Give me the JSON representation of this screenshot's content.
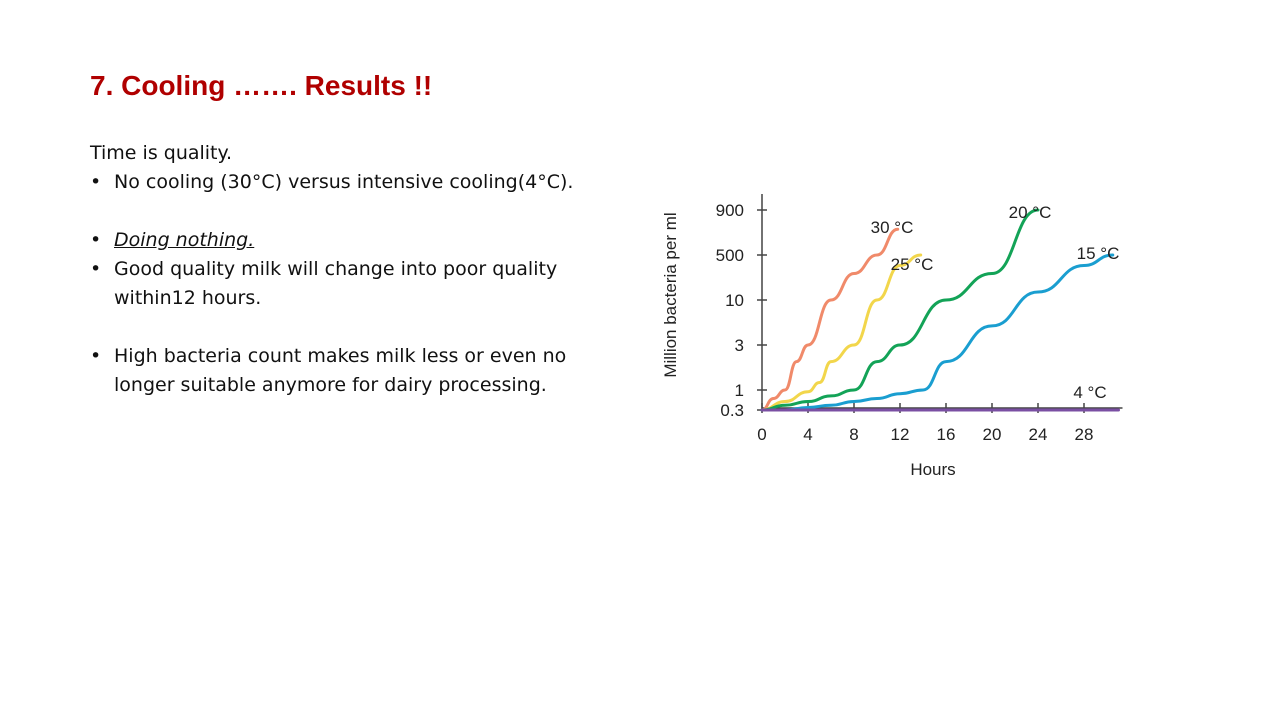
{
  "slide": {
    "title": "7. Cooling ……. Results !!",
    "intro": "Time is quality.",
    "bullet_1": "No cooling (30°C)  versus intensive cooling(4°C).",
    "bullet_2": "Doing nothing.",
    "bullet_3": "Good quality milk will change into poor quality within12 hours.",
    "bullet_4": "High bacteria count makes milk less or even no longer suitable anymore for dairy processing."
  },
  "chart_data": {
    "type": "line",
    "title": "",
    "xlabel": "Hours",
    "ylabel": "Million bacteria per ml",
    "xlim": [
      0,
      31
    ],
    "x_ticks": [
      0,
      4,
      8,
      12,
      16,
      20,
      24,
      28
    ],
    "y_ticks": [
      "0.3",
      "1",
      "3",
      "10",
      "500",
      "900"
    ],
    "grid": false,
    "legend": "none (series labelled at line ends)",
    "series": [
      {
        "name": "30 °C",
        "color": "#f08a6a",
        "x": [
          0,
          1,
          2,
          3,
          4,
          6,
          8,
          10,
          11.8
        ],
        "y": [
          "0.3",
          "0.6",
          "1",
          "2",
          "3",
          "10",
          "100",
          "500",
          "700"
        ]
      },
      {
        "name": "25 °C",
        "color": "#f2d64b",
        "x": [
          0,
          2,
          4,
          5,
          6,
          8,
          10,
          12,
          13.8
        ],
        "y": [
          "0.3",
          "0.5",
          "0.9",
          "1.2",
          "2",
          "3",
          "10",
          "200",
          "500"
        ]
      },
      {
        "name": "20 °C",
        "color": "#13a357",
        "x": [
          0,
          2,
          4,
          6,
          8,
          10,
          12,
          16,
          20,
          24
        ],
        "y": [
          "0.3",
          "0.4",
          "0.5",
          "0.7",
          "1",
          "2",
          "3",
          "10",
          "100",
          "900"
        ]
      },
      {
        "name": "15 °C",
        "color": "#1a9ed0",
        "x": [
          0,
          2,
          4,
          6,
          8,
          10,
          12,
          14,
          16,
          20,
          24,
          28,
          30.5
        ],
        "y": [
          "0.3",
          "0.3",
          "0.35",
          "0.4",
          "0.5",
          "0.6",
          "0.8",
          "1",
          "2",
          "5",
          "20",
          "200",
          "500"
        ]
      },
      {
        "name": "4 °C",
        "color": "#7a4fa3",
        "x": [
          0,
          8,
          16,
          24,
          31
        ],
        "y": [
          "0.3",
          "0.3",
          "0.3",
          "0.3",
          "0.3"
        ]
      }
    ]
  }
}
